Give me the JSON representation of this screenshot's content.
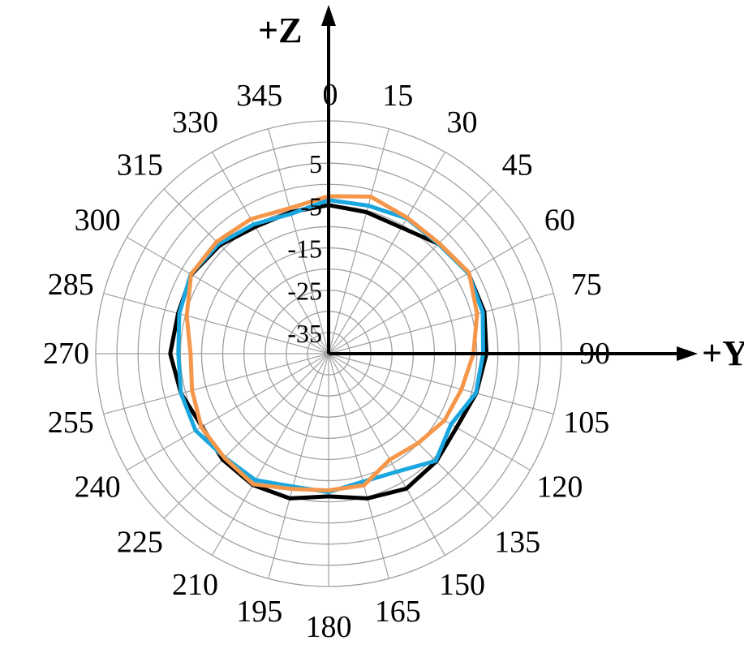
{
  "chart_data": {
    "type": "line",
    "angle_labels": [
      "0",
      "15",
      "30",
      "45",
      "60",
      "75",
      "90",
      "105",
      "120",
      "135",
      "150",
      "165",
      "180",
      "195",
      "210",
      "225",
      "240",
      "255",
      "270",
      "285",
      "300",
      "315",
      "330",
      "345"
    ],
    "radial_labels": [
      "5",
      "-5",
      "-15",
      "-25",
      "-35"
    ],
    "axis_labels": {
      "z": "+Z",
      "y": "+Y"
    },
    "series": [
      {
        "color": "#000000",
        "angles": [
          0,
          15,
          30,
          45,
          60,
          75,
          90,
          105,
          120,
          135,
          150,
          165,
          180,
          195,
          210,
          225,
          240,
          255,
          270,
          285,
          300,
          315,
          330,
          345
        ],
        "values": [
          -4.9,
          -5.4,
          -5.6,
          -3.3,
          -1.9,
          -1.9,
          -2.7,
          -3.9,
          -5.1,
          -4.0,
          -3.2,
          -4.6,
          -6.3,
          -4.6,
          -4.2,
          -4.6,
          -5.5,
          -3.9,
          -2.6,
          -3.2,
          -2.6,
          -3.7,
          -5.4,
          -5.4
        ],
        "line_values": true
      },
      {
        "color": "#1aa7df",
        "angles": [
          0,
          15,
          30,
          45,
          60,
          75,
          90,
          105,
          120,
          135,
          150,
          165,
          180,
          195,
          210,
          225,
          240,
          255,
          270,
          285,
          300,
          315,
          330,
          345
        ],
        "values": [
          -3.7,
          -3.8,
          -3.1,
          -3.3,
          -1.9,
          -2.3,
          -3.5,
          -4.0,
          -6.6,
          -4.2,
          -7.8,
          -8.7,
          -7.3,
          -7.5,
          -5.5,
          -5.3,
          -3.7,
          -3.9,
          -4.5,
          -3.5,
          -2.4,
          -3.3,
          -4.7,
          -5.8
        ]
      },
      {
        "color": "#f5974a",
        "angles": [
          0,
          15,
          30,
          45,
          60,
          75,
          90,
          105,
          120,
          135,
          150,
          165,
          180,
          195,
          210,
          225,
          240,
          255,
          270,
          285,
          300,
          315,
          330,
          345
        ],
        "values": [
          -2.8,
          -1.6,
          -2.9,
          -3.1,
          -1.7,
          -3.7,
          -5.8,
          -7.5,
          -8.4,
          -10.1,
          -11.1,
          -7.8,
          -7.7,
          -6.9,
          -4.4,
          -5.2,
          -5.3,
          -6.6,
          -7.4,
          -5.3,
          -2.5,
          -2.6,
          -3.3,
          -4.4
        ]
      }
    ],
    "r_range": [
      -40,
      15
    ],
    "grid": true,
    "angle_step": 15,
    "radial_grid_step": 5
  }
}
